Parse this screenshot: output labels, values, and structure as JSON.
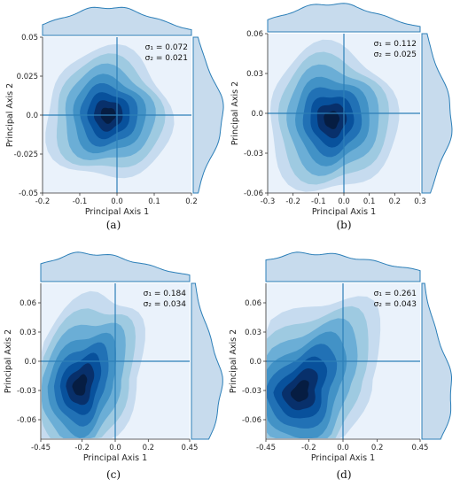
{
  "colors": {
    "background": "#eaf2fb",
    "line": "#2c7fb8",
    "marginal_fill": "#b9d2e8",
    "levels": [
      "#c6dbef",
      "#9ecae1",
      "#6baed6",
      "#4292c6",
      "#2171b5",
      "#08519c",
      "#08306b",
      "#061d42"
    ]
  },
  "chart_data": [
    {
      "type": "kde-contour",
      "panel": "(a)",
      "xlabel": "Principal Axis 1",
      "ylabel": "Principal Axis 2",
      "xlim": [
        -0.2,
        0.2
      ],
      "ylim": [
        -0.05,
        0.05
      ],
      "xticks": [
        "-0.2",
        "-0.1",
        "0.0",
        "0.1",
        "0.2"
      ],
      "yticks": [
        "-0.05",
        "-0.025",
        "0.0",
        "0.025",
        "0.05"
      ],
      "sigma1": "σ₁ = 0.072",
      "sigma2": "σ₂ = 0.021",
      "peak": [
        -0.025,
        0.0
      ]
    },
    {
      "type": "kde-contour",
      "panel": "(b)",
      "xlabel": "Principal Axis 1",
      "ylabel": "Principal Axis 2",
      "xlim": [
        -0.3,
        0.3
      ],
      "ylim": [
        -0.06,
        0.06
      ],
      "xticks": [
        "-0.3",
        "-0.2",
        "-0.1",
        "0.0",
        "0.1",
        "0.2",
        "0.3"
      ],
      "yticks": [
        "-0.06",
        "-0.03",
        "0.0",
        "0.03",
        "0.06"
      ],
      "sigma1": "σ₁ = 0.112",
      "sigma2": "σ₂ = 0.025",
      "peak": [
        -0.05,
        -0.007
      ]
    },
    {
      "type": "kde-contour",
      "panel": "(c)",
      "xlabel": "Principal Axis 1",
      "ylabel": "Principal Axis 2",
      "xlim": [
        -0.45,
        0.45
      ],
      "ylim": [
        -0.08,
        0.08
      ],
      "xticks": [
        "-0.45",
        "-0.2",
        "0.0",
        "0.2",
        "0.45"
      ],
      "yticks": [
        "-0.06",
        "-0.03",
        "0.0",
        "0.03",
        "0.06"
      ],
      "sigma1": "σ₁ = 0.184",
      "sigma2": "σ₂ = 0.034",
      "peak": [
        -0.15,
        -0.012
      ]
    },
    {
      "type": "kde-contour",
      "panel": "(d)",
      "xlabel": "Principal Axis 1",
      "ylabel": "Principal Axis 2",
      "xlim": [
        -0.45,
        0.45
      ],
      "ylim": [
        -0.08,
        0.08
      ],
      "xticks": [
        "-0.45",
        "-0.2",
        "0.0",
        "0.2",
        "0.45"
      ],
      "yticks": [
        "-0.06",
        "-0.03",
        "0.0",
        "0.03",
        "0.06"
      ],
      "sigma1": "σ₁ = 0.261",
      "sigma2": "σ₂ = 0.043",
      "peak": [
        -0.25,
        -0.025
      ]
    }
  ]
}
